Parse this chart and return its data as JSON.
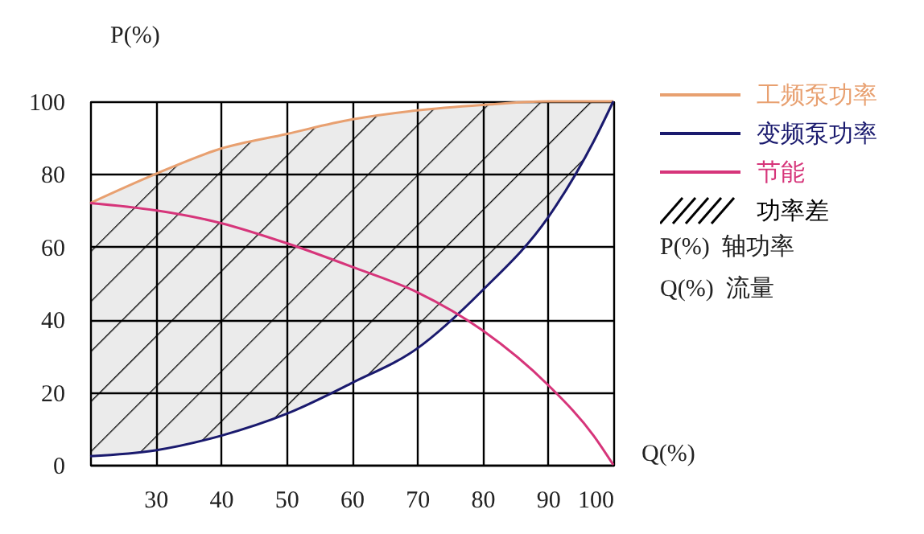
{
  "chart_data": {
    "type": "line",
    "xlabel": "Q(%)",
    "ylabel": "P(%)",
    "x": [
      20,
      30,
      40,
      50,
      60,
      70,
      80,
      90,
      97,
      100
    ],
    "series": [
      {
        "name": "工频泵功率",
        "color": "#e8a070",
        "values": [
          72,
          80,
          87,
          91,
          95,
          97.5,
          99,
          100,
          100,
          100
        ]
      },
      {
        "name": "变频泵功率",
        "color": "#1a1a6e",
        "values": [
          2.4,
          4,
          8,
          14,
          22.5,
          32,
          48,
          68,
          89,
          100
        ]
      },
      {
        "name": "节能",
        "color": "#d6357a",
        "values": [
          72,
          70,
          66.5,
          61,
          54.5,
          47.5,
          37,
          22,
          8,
          0
        ]
      },
      {
        "name": "功率差",
        "type": "area",
        "color": "#000000",
        "values": [
          null,
          null,
          null,
          null,
          null,
          null,
          null,
          null,
          null,
          null
        ],
        "lower": [
          2.4,
          4,
          8,
          14,
          22.5,
          32,
          48,
          68,
          89,
          100
        ],
        "upper": [
          72,
          80,
          87,
          91,
          95,
          97.5,
          99,
          100,
          100,
          100
        ]
      }
    ],
    "annotations": [
      "P(%)  轴功率",
      "Q(%)  流量"
    ],
    "xlim": [
      20,
      100
    ],
    "xticks": [
      30,
      40,
      50,
      60,
      70,
      80,
      90,
      100
    ],
    "ylim": [
      0,
      100
    ],
    "yticks": [
      0,
      20,
      40,
      60,
      80,
      100
    ],
    "grid": true,
    "legend": "right",
    "marker": "none",
    "line_style": "solid"
  }
}
